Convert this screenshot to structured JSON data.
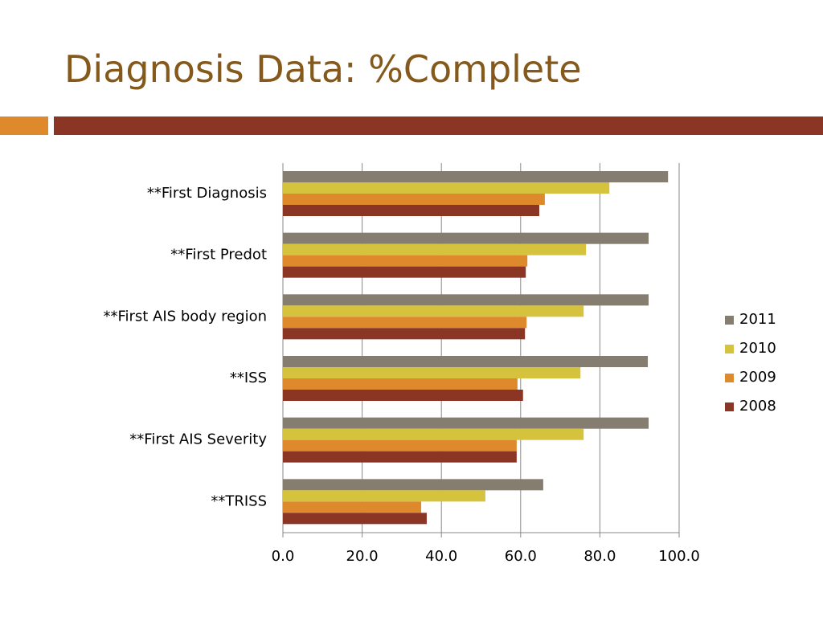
{
  "chart_data": {
    "type": "bar",
    "orientation": "horizontal",
    "title": "Diagnosis Data: %Complete",
    "categories": [
      "**First Diagnosis",
      "**First Predot",
      "**First AIS body region",
      "**ISS",
      "**First AIS Severity",
      "**TRISS"
    ],
    "series": [
      {
        "name": "2011",
        "color": "#857d6f",
        "values": [
          97.2,
          92.3,
          92.3,
          92.1,
          92.3,
          65.7
        ]
      },
      {
        "name": "2010",
        "color": "#d6c33d",
        "values": [
          82.4,
          76.5,
          75.9,
          75.1,
          75.9,
          51.1
        ]
      },
      {
        "name": "2009",
        "color": "#de8a2c",
        "values": [
          66.1,
          61.7,
          61.5,
          59.2,
          59.0,
          34.9
        ]
      },
      {
        "name": "2008",
        "color": "#8b3525",
        "values": [
          64.7,
          61.3,
          61.1,
          60.6,
          59.0,
          36.3
        ]
      }
    ],
    "xlim": [
      0,
      100
    ],
    "xticks": [
      {
        "value": 0,
        "label": "0.0"
      },
      {
        "value": 20,
        "label": "20.0"
      },
      {
        "value": 40,
        "label": "40.0"
      },
      {
        "value": 60,
        "label": "60.0"
      },
      {
        "value": 80,
        "label": "80.0"
      },
      {
        "value": 100,
        "label": "100.0"
      }
    ],
    "grid": true,
    "legend": "right"
  }
}
